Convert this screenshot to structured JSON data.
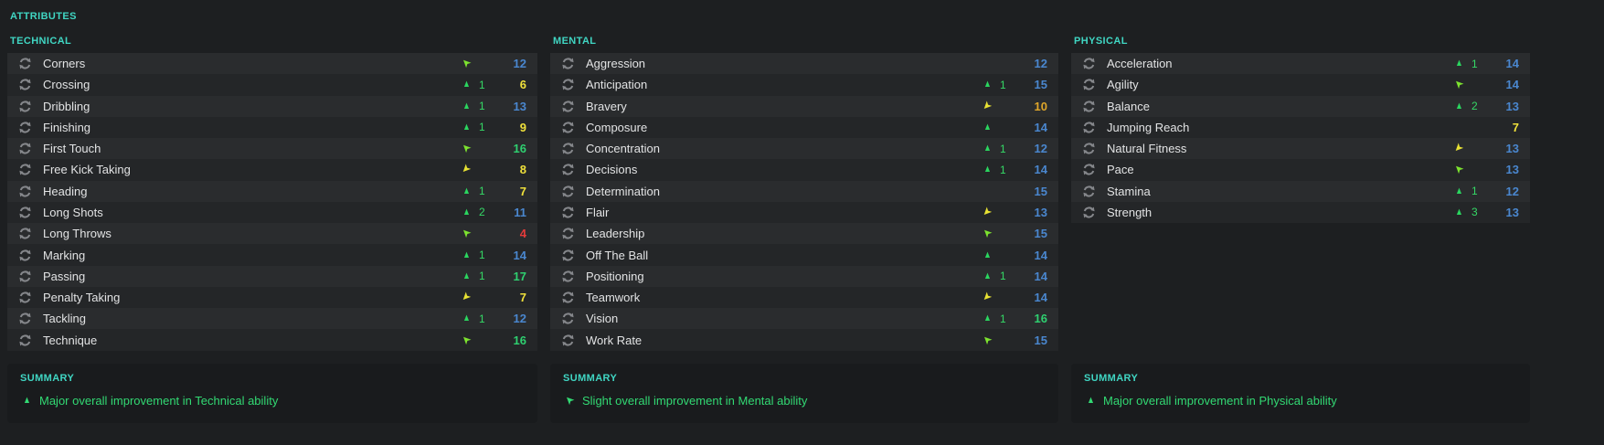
{
  "header": {
    "attributes_label": "ATTRIBUTES"
  },
  "palette": {
    "accent_teal": "#40d6c3",
    "row_light": "#2a2c2e",
    "row_dark": "#242628",
    "panel_bg": "#191b1d",
    "page_bg": "#1d1f21",
    "value_red": "#e43b3b",
    "value_yellow": "#f0e13b",
    "value_gold": "#dfa62a",
    "value_blue": "#4a87cf",
    "value_green": "#2fd070",
    "arrow_up_green": "#2ad65f",
    "arrow_slight_up_lime": "#7de32f",
    "arrow_slight_down_yellow": "#e8e233",
    "summary_green": "#32d973"
  },
  "sections": [
    {
      "id": "technical",
      "label": "TECHNICAL",
      "rows": [
        {
          "name": "Corners",
          "change": "slight-up",
          "delta": null,
          "value": 12
        },
        {
          "name": "Crossing",
          "change": "up",
          "delta": 1,
          "value": 6
        },
        {
          "name": "Dribbling",
          "change": "up",
          "delta": 1,
          "value": 13
        },
        {
          "name": "Finishing",
          "change": "up",
          "delta": 1,
          "value": 9
        },
        {
          "name": "First Touch",
          "change": "slight-up",
          "delta": null,
          "value": 16
        },
        {
          "name": "Free Kick Taking",
          "change": "slight-down",
          "delta": null,
          "value": 8
        },
        {
          "name": "Heading",
          "change": "up",
          "delta": 1,
          "value": 7
        },
        {
          "name": "Long Shots",
          "change": "up",
          "delta": 2,
          "value": 11
        },
        {
          "name": "Long Throws",
          "change": "slight-up",
          "delta": null,
          "value": 4
        },
        {
          "name": "Marking",
          "change": "up",
          "delta": 1,
          "value": 14
        },
        {
          "name": "Passing",
          "change": "up",
          "delta": 1,
          "value": 17
        },
        {
          "name": "Penalty Taking",
          "change": "slight-down",
          "delta": null,
          "value": 7
        },
        {
          "name": "Tackling",
          "change": "up",
          "delta": 1,
          "value": 12
        },
        {
          "name": "Technique",
          "change": "slight-up",
          "delta": null,
          "value": 16
        }
      ],
      "summary": {
        "label": "SUMMARY",
        "icon": "up",
        "text": "Major overall improvement in Technical ability"
      }
    },
    {
      "id": "mental",
      "label": "MENTAL",
      "rows": [
        {
          "name": "Aggression",
          "change": "none",
          "delta": null,
          "value": 12
        },
        {
          "name": "Anticipation",
          "change": "up",
          "delta": 1,
          "value": 15
        },
        {
          "name": "Bravery",
          "change": "slight-down",
          "delta": null,
          "value": 10
        },
        {
          "name": "Composure",
          "change": "up",
          "delta": null,
          "value": 14
        },
        {
          "name": "Concentration",
          "change": "up",
          "delta": 1,
          "value": 12
        },
        {
          "name": "Decisions",
          "change": "up",
          "delta": 1,
          "value": 14
        },
        {
          "name": "Determination",
          "change": "none",
          "delta": null,
          "value": 15
        },
        {
          "name": "Flair",
          "change": "slight-down",
          "delta": null,
          "value": 13
        },
        {
          "name": "Leadership",
          "change": "slight-up",
          "delta": null,
          "value": 15
        },
        {
          "name": "Off The Ball",
          "change": "up",
          "delta": null,
          "value": 14
        },
        {
          "name": "Positioning",
          "change": "up",
          "delta": 1,
          "value": 14
        },
        {
          "name": "Teamwork",
          "change": "slight-down",
          "delta": null,
          "value": 14
        },
        {
          "name": "Vision",
          "change": "up",
          "delta": 1,
          "value": 16
        },
        {
          "name": "Work Rate",
          "change": "slight-up",
          "delta": null,
          "value": 15
        }
      ],
      "summary": {
        "label": "SUMMARY",
        "icon": "slight-up",
        "text": "Slight overall improvement in Mental ability"
      }
    },
    {
      "id": "physical",
      "label": "PHYSICAL",
      "rows": [
        {
          "name": "Acceleration",
          "change": "up",
          "delta": 1,
          "value": 14
        },
        {
          "name": "Agility",
          "change": "slight-up",
          "delta": null,
          "value": 14
        },
        {
          "name": "Balance",
          "change": "up",
          "delta": 2,
          "value": 13
        },
        {
          "name": "Jumping Reach",
          "change": "none",
          "delta": null,
          "value": 7
        },
        {
          "name": "Natural Fitness",
          "change": "slight-down",
          "delta": null,
          "value": 13
        },
        {
          "name": "Pace",
          "change": "slight-up",
          "delta": null,
          "value": 13
        },
        {
          "name": "Stamina",
          "change": "up",
          "delta": 1,
          "value": 12
        },
        {
          "name": "Strength",
          "change": "up",
          "delta": 3,
          "value": 13
        }
      ],
      "summary": {
        "label": "SUMMARY",
        "icon": "up",
        "text": "Major overall improvement in Physical ability"
      }
    }
  ]
}
